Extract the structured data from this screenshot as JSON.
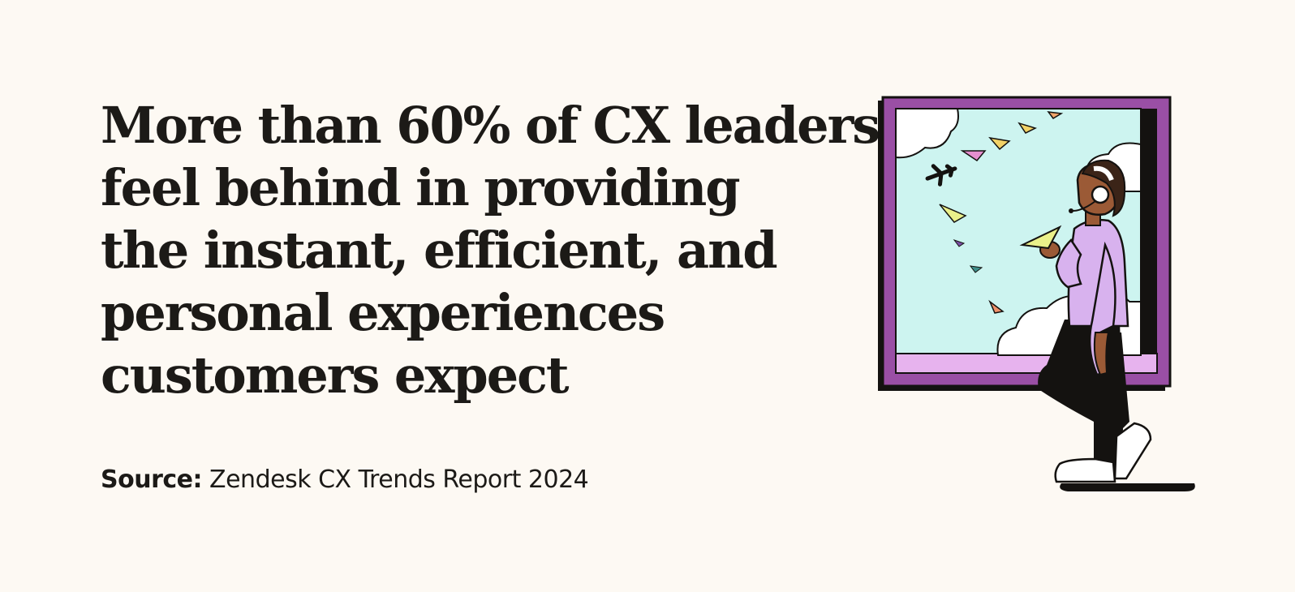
{
  "headline": {
    "lines": [
      "More than 60% of CX leaders",
      "feel behind in providing",
      "the instant, efficient, and",
      "personal experiences",
      "customers expect"
    ]
  },
  "source": {
    "label": "Source:",
    "text": "Zendesk CX Trends Report 2024"
  },
  "illustration": {
    "icon": "person-with-headset-at-window-icon",
    "frame_color": "#9a4fa5",
    "sky_color": "#cdf4f0",
    "shirt_color": "#d8b2ee"
  }
}
